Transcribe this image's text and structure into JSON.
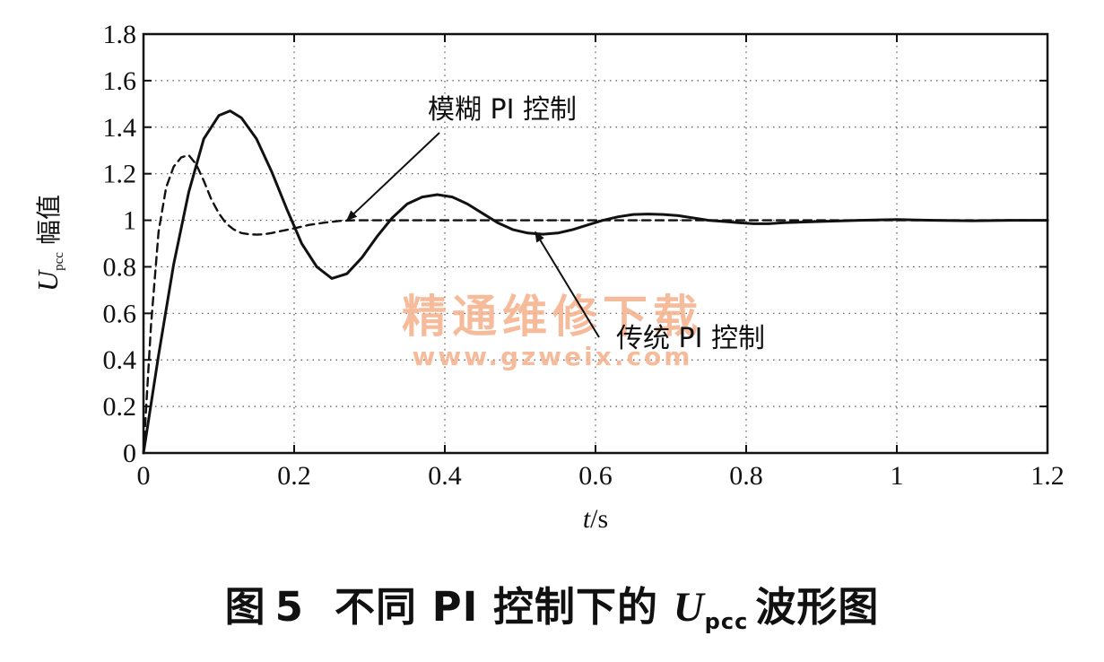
{
  "chart_data": {
    "type": "line",
    "xlabel": "t/s",
    "ylabel": {
      "symbol": "U",
      "subscript": "pcc",
      "text": "幅值"
    },
    "xlim": [
      0,
      1.2
    ],
    "ylim": [
      0,
      1.8
    ],
    "xticks": [
      0,
      0.2,
      0.4,
      0.6,
      0.8,
      1,
      1.2
    ],
    "xtick_labels": [
      "0",
      "0.2",
      "0.4",
      "0.6",
      "0.8",
      "1",
      "1.2"
    ],
    "yticks": [
      0,
      0.2,
      0.4,
      0.6,
      0.8,
      1,
      1.2,
      1.4,
      1.6,
      1.8
    ],
    "ytick_labels": [
      "0",
      "0.2",
      "0.4",
      "0.6",
      "0.8",
      "1",
      "1.2",
      "1.4",
      "1.6",
      "1.8"
    ],
    "grid": true,
    "series": [
      {
        "name": "传统 PI 控制",
        "style": "solid",
        "color": "#111111",
        "x": [
          0,
          0.02,
          0.04,
          0.06,
          0.08,
          0.1,
          0.115,
          0.13,
          0.15,
          0.17,
          0.19,
          0.21,
          0.23,
          0.25,
          0.27,
          0.29,
          0.31,
          0.33,
          0.35,
          0.37,
          0.39,
          0.41,
          0.43,
          0.45,
          0.47,
          0.49,
          0.51,
          0.53,
          0.55,
          0.57,
          0.59,
          0.61,
          0.63,
          0.65,
          0.67,
          0.69,
          0.71,
          0.73,
          0.75,
          0.77,
          0.79,
          0.81,
          0.83,
          0.85,
          0.9,
          0.95,
          1.0,
          1.05,
          1.1,
          1.15,
          1.2
        ],
        "y": [
          0,
          0.42,
          0.81,
          1.12,
          1.35,
          1.45,
          1.47,
          1.44,
          1.35,
          1.21,
          1.05,
          0.9,
          0.8,
          0.75,
          0.77,
          0.84,
          0.93,
          1.01,
          1.07,
          1.1,
          1.11,
          1.1,
          1.07,
          1.03,
          0.99,
          0.96,
          0.945,
          0.94,
          0.945,
          0.96,
          0.98,
          1.0,
          1.015,
          1.025,
          1.027,
          1.025,
          1.02,
          1.01,
          1.0,
          0.995,
          0.99,
          0.985,
          0.985,
          0.99,
          0.995,
          1.0,
          1.003,
          1.0,
          0.998,
          1.0,
          1.0
        ]
      },
      {
        "name": "模糊 PI 控制",
        "style": "dashed",
        "color": "#111111",
        "x": [
          0,
          0.01,
          0.02,
          0.03,
          0.04,
          0.05,
          0.06,
          0.07,
          0.08,
          0.09,
          0.1,
          0.11,
          0.12,
          0.13,
          0.14,
          0.15,
          0.16,
          0.17,
          0.18,
          0.2,
          0.22,
          0.24,
          0.26,
          0.28,
          0.3,
          0.35,
          0.4,
          0.5,
          0.6,
          0.7,
          0.8,
          0.9,
          1.0,
          1.1,
          1.2
        ],
        "y": [
          0,
          0.55,
          0.95,
          1.14,
          1.23,
          1.27,
          1.28,
          1.24,
          1.17,
          1.09,
          1.03,
          0.985,
          0.96,
          0.945,
          0.94,
          0.938,
          0.94,
          0.945,
          0.952,
          0.965,
          0.98,
          0.99,
          0.997,
          1.0,
          1.0,
          1.0,
          1.0,
          1.0,
          1.0,
          1.0,
          1.0,
          1.0,
          1.0,
          1.0,
          1.0
        ]
      }
    ],
    "annotations": [
      {
        "text": "模糊 PI 控制",
        "target": [
          0.27,
          1.0
        ]
      },
      {
        "text": "传统 PI 控制",
        "target": [
          0.52,
          0.95
        ]
      }
    ]
  },
  "caption": {
    "prefix": "图",
    "number": "5",
    "text_before": "不同 PI 控制下的",
    "symbol": "U",
    "subscript": "pcc",
    "text_after": "波形图"
  },
  "watermark": {
    "text": "精通维修下载",
    "url": "www.gzweix.com"
  }
}
